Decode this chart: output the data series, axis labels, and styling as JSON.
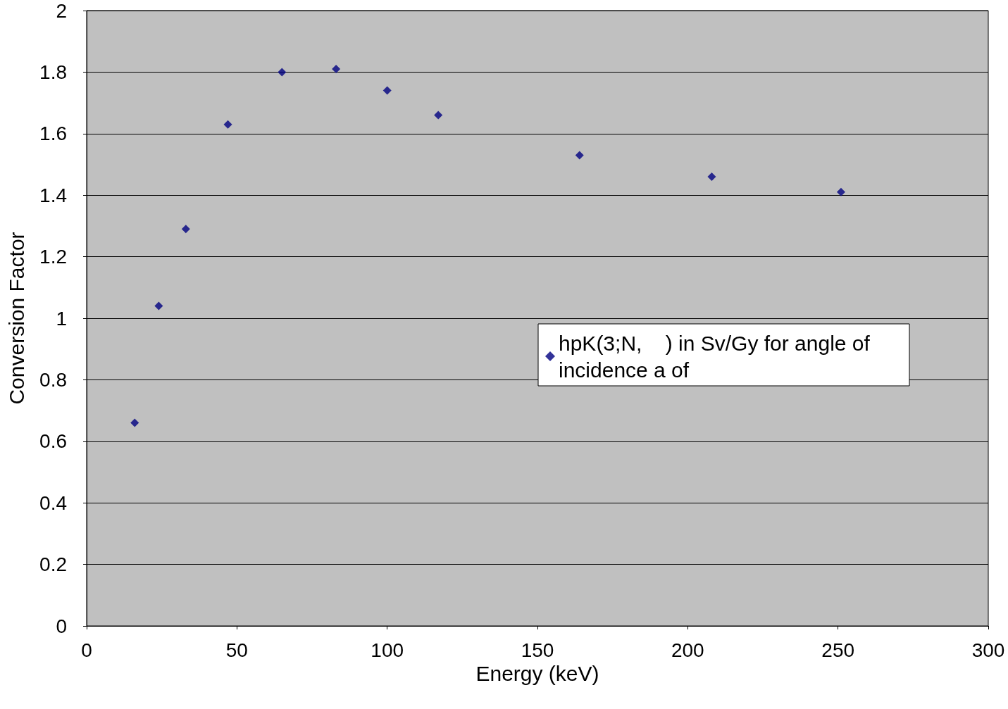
{
  "chart_data": {
    "type": "scatter",
    "xlabel": "Energy (keV)",
    "ylabel": "Conversion Factor",
    "x": [
      16,
      24,
      33,
      47,
      65,
      83,
      100,
      117,
      164,
      208,
      251
    ],
    "series": [
      {
        "name": "hpK(3;N,    ) in Sv/Gy for angle of incidence a of",
        "color": "#000080",
        "values": [
          0.66,
          1.04,
          1.29,
          1.63,
          1.8,
          1.81,
          1.74,
          1.66,
          1.53,
          1.46,
          1.41
        ]
      }
    ],
    "xlim": [
      0,
      300
    ],
    "xticks": [
      0,
      50,
      100,
      150,
      200,
      250,
      300
    ],
    "ylim": [
      0,
      2
    ],
    "yticks": [
      0,
      0.2,
      0.4,
      0.6,
      0.8,
      1,
      1.2,
      1.4,
      1.6,
      1.8,
      2
    ],
    "grid": "y",
    "legend": "right",
    "marker": "diamond"
  }
}
